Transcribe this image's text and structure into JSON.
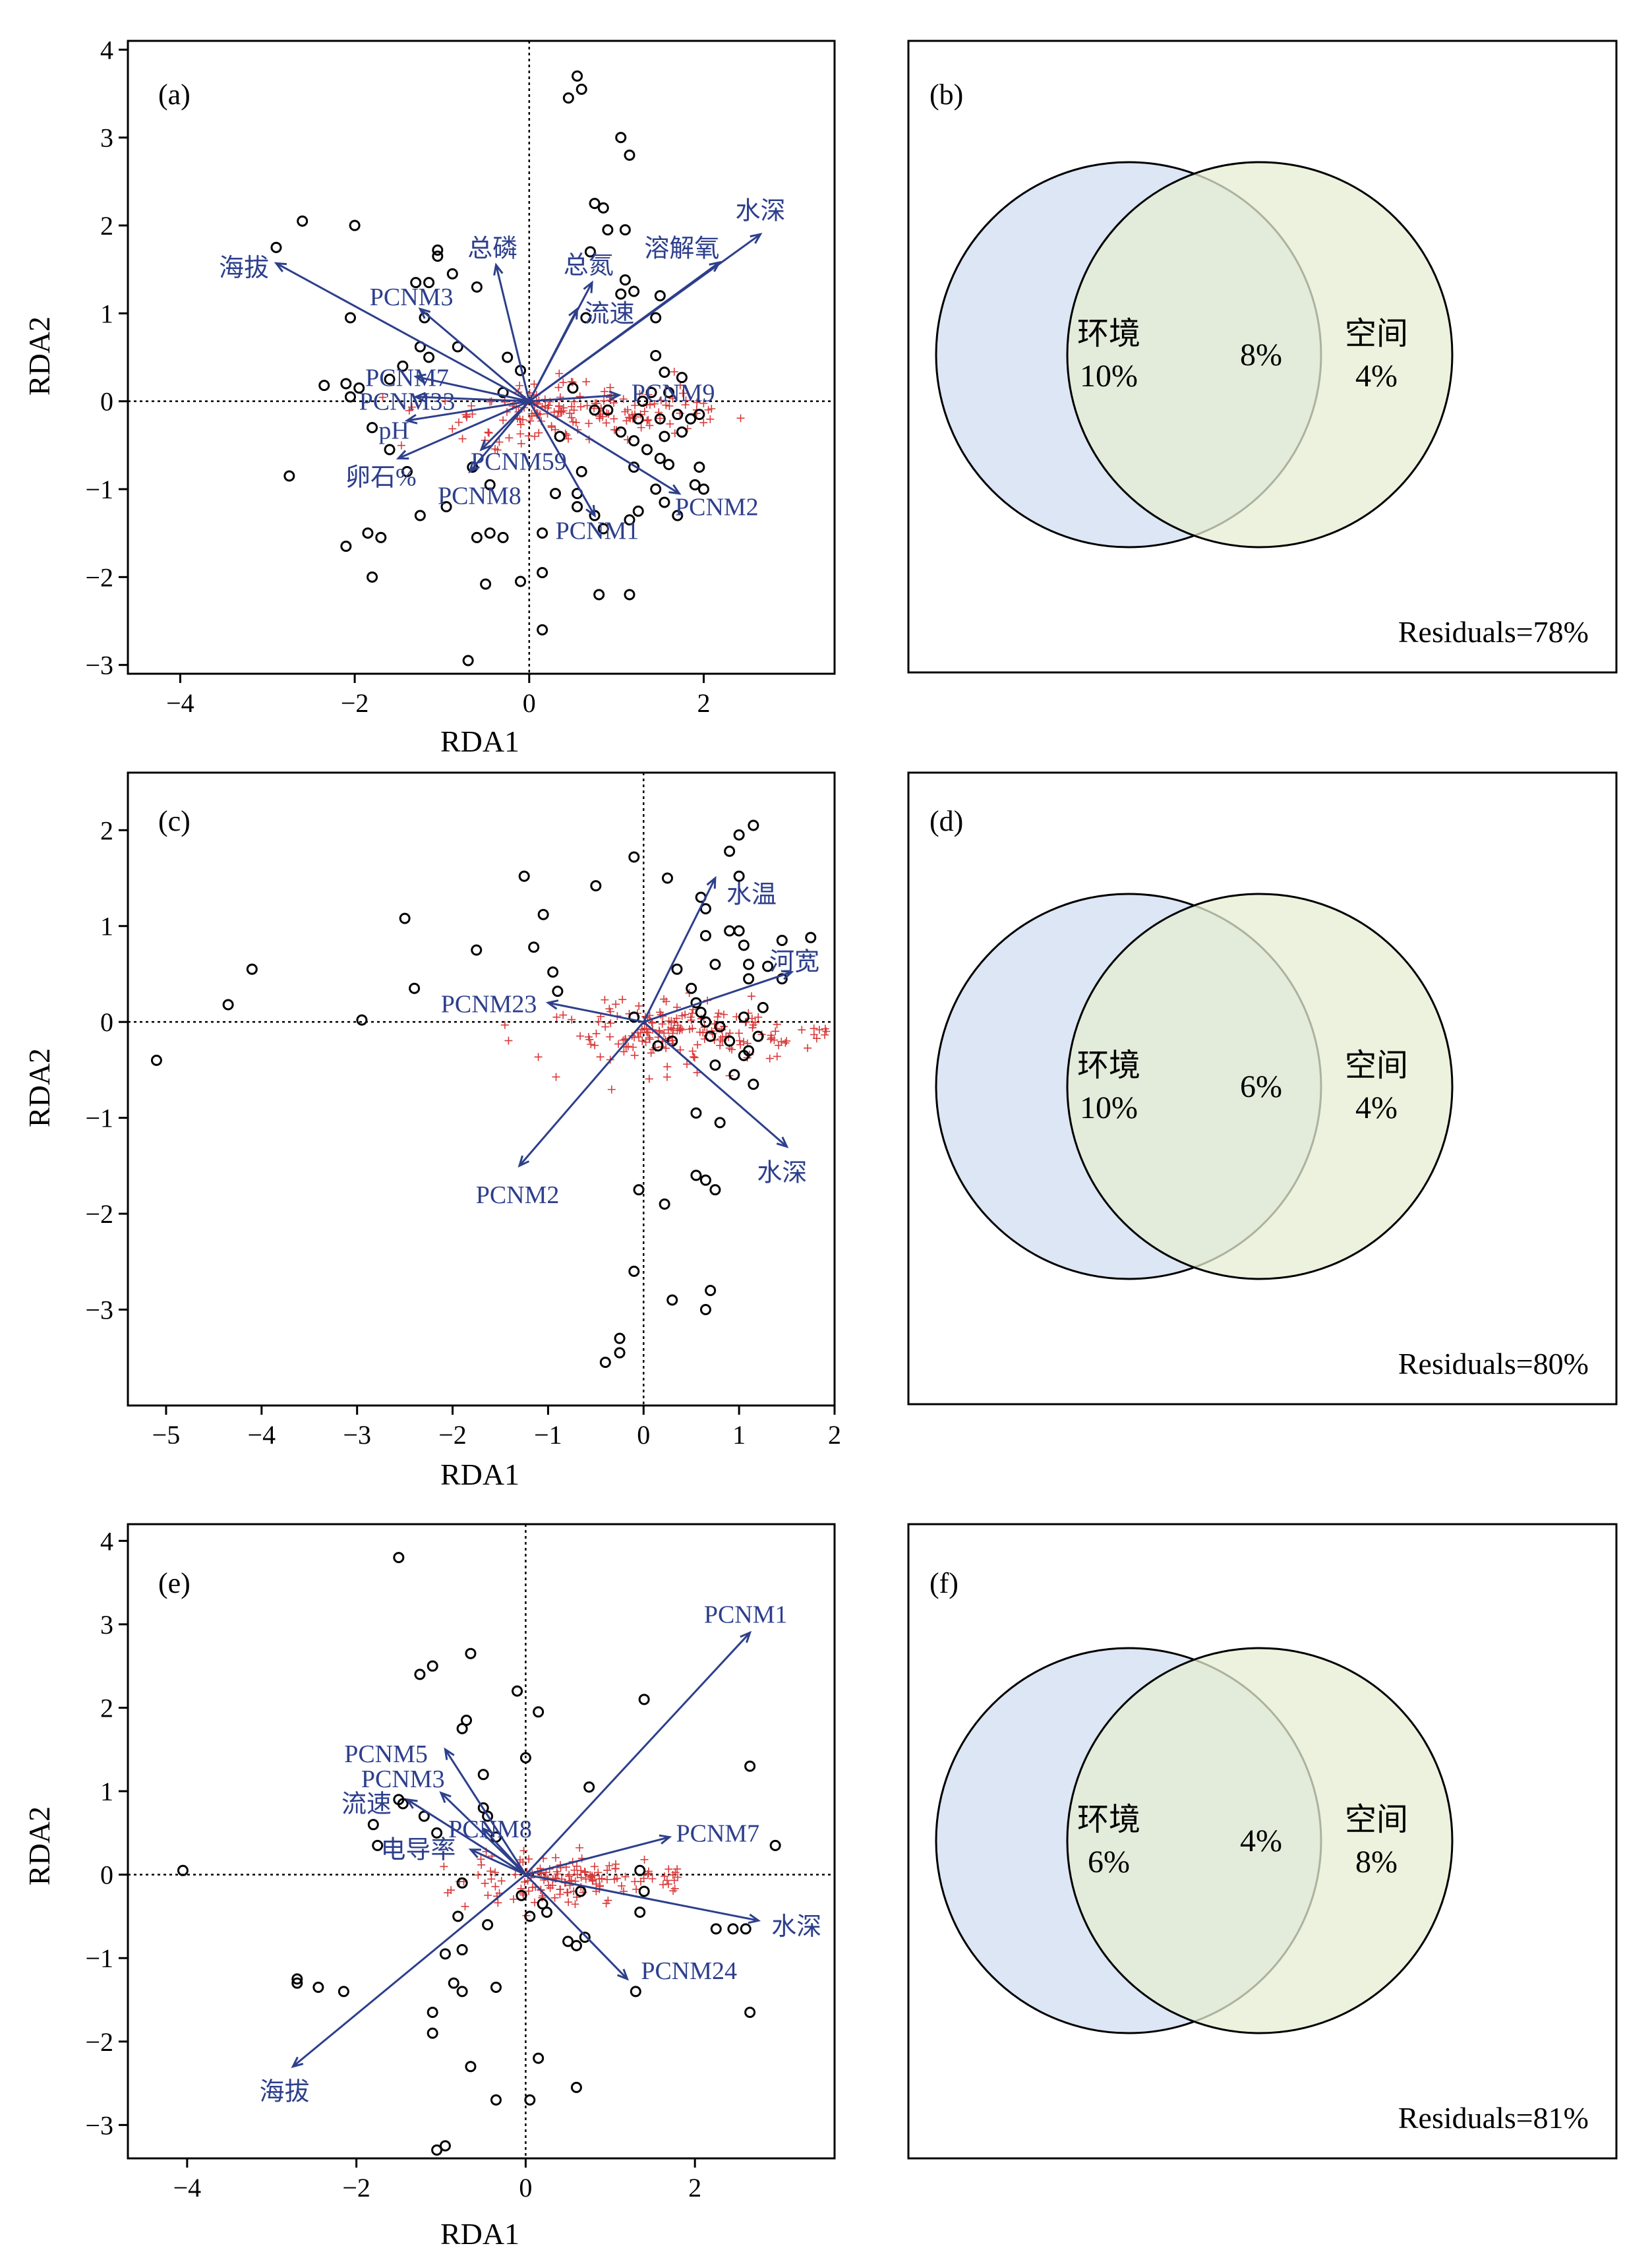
{
  "colors": {
    "arrow": "#2d3f8c",
    "site_point": "#000000",
    "species_point": "#d93a3a",
    "env_circle": "#d6e2f3",
    "space_circle": "#e6eed2",
    "overlap": "#c6dcd0"
  },
  "chart_data": [
    {
      "type": "scatter",
      "panel": "(a)",
      "xlabel": "RDA1",
      "ylabel": "RDA2",
      "xlim": [
        -4.6,
        3.5
      ],
      "ylim": [
        -3.1,
        4.1
      ],
      "xticks": [
        -4,
        -2,
        0,
        2
      ],
      "yticks": [
        -3,
        -2,
        -1,
        0,
        1,
        2,
        3,
        4
      ],
      "arrows": [
        {
          "label": "海拔",
          "x": -2.9,
          "y": 1.57,
          "lx": -3.27,
          "ly": 1.52
        },
        {
          "label": "总磷",
          "x": -0.38,
          "y": 1.55,
          "lx": -0.42,
          "ly": 1.74
        },
        {
          "label": "总氮",
          "x": 0.72,
          "y": 1.35,
          "lx": 0.68,
          "ly": 1.55
        },
        {
          "label": "溶解氧",
          "x": 2.18,
          "y": 1.58,
          "lx": 1.75,
          "ly": 1.74
        },
        {
          "label": "水深",
          "x": 2.65,
          "y": 1.9,
          "lx": 2.65,
          "ly": 2.17
        },
        {
          "label": "流速",
          "x": 0.55,
          "y": 1.05,
          "lx": 0.92,
          "ly": 1.0
        },
        {
          "label": "PCNM3",
          "x": -1.25,
          "y": 1.05,
          "lx": -1.35,
          "ly": 1.19
        },
        {
          "label": "PCNM7",
          "x": -1.3,
          "y": 0.28,
          "lx": -1.4,
          "ly": 0.27
        },
        {
          "label": "PCNM33",
          "x": -1.3,
          "y": 0.05,
          "lx": -1.4,
          "ly": 0.0
        },
        {
          "label": "pH",
          "x": -1.4,
          "y": -0.22,
          "lx": -1.55,
          "ly": -0.33
        },
        {
          "label": "卵石%",
          "x": -1.5,
          "y": -0.65,
          "lx": -1.7,
          "ly": -0.86
        },
        {
          "label": "PCNM59",
          "x": -0.55,
          "y": -0.55,
          "lx": -0.12,
          "ly": -0.68
        },
        {
          "label": "PCNM8",
          "x": -0.68,
          "y": -0.8,
          "lx": -0.57,
          "ly": -1.07
        },
        {
          "label": "PCNM9",
          "x": 1.03,
          "y": 0.07,
          "lx": 1.65,
          "ly": 0.1
        },
        {
          "label": "PCNM1",
          "x": 0.75,
          "y": -1.3,
          "lx": 0.78,
          "ly": -1.47
        },
        {
          "label": "PCNM2",
          "x": 1.72,
          "y": -1.05,
          "lx": 2.15,
          "ly": -1.2
        }
      ],
      "sites": [
        [
          -2.9,
          1.75
        ],
        [
          -2.6,
          2.05
        ],
        [
          -2.0,
          2.0
        ],
        [
          -1.15,
          1.35
        ],
        [
          -1.05,
          1.65
        ],
        [
          -1.05,
          1.72
        ],
        [
          -0.88,
          1.45
        ],
        [
          -0.6,
          1.3
        ],
        [
          -1.3,
          1.35
        ],
        [
          -2.05,
          0.95
        ],
        [
          -1.2,
          0.95
        ],
        [
          -1.25,
          0.62
        ],
        [
          -1.15,
          0.5
        ],
        [
          -0.82,
          0.62
        ],
        [
          -1.45,
          0.4
        ],
        [
          -1.6,
          0.25
        ],
        [
          -1.95,
          0.15
        ],
        [
          -2.1,
          0.2
        ],
        [
          -2.35,
          0.18
        ],
        [
          -2.05,
          0.05
        ],
        [
          -0.25,
          0.5
        ],
        [
          -0.1,
          0.35
        ],
        [
          -0.3,
          0.1
        ],
        [
          -2.75,
          -0.85
        ],
        [
          -1.8,
          -0.3
        ],
        [
          -1.6,
          -0.55
        ],
        [
          -1.4,
          -0.8
        ],
        [
          -0.95,
          -1.2
        ],
        [
          -0.65,
          -0.75
        ],
        [
          -0.45,
          -0.95
        ],
        [
          -0.45,
          -1.5
        ],
        [
          -0.6,
          -1.55
        ],
        [
          -0.3,
          -1.55
        ],
        [
          -1.25,
          -1.3
        ],
        [
          -1.7,
          -1.55
        ],
        [
          -1.85,
          -1.5
        ],
        [
          -2.1,
          -1.65
        ],
        [
          -1.8,
          -2.0
        ],
        [
          -0.7,
          -2.95
        ],
        [
          -0.5,
          -2.08
        ],
        [
          -0.1,
          -2.05
        ],
        [
          0.15,
          -1.95
        ],
        [
          0.15,
          -2.6
        ],
        [
          0.35,
          -0.4
        ],
        [
          0.6,
          -0.8
        ],
        [
          0.55,
          -1.05
        ],
        [
          0.75,
          -1.3
        ],
        [
          0.85,
          -1.45
        ],
        [
          0.55,
          -1.2
        ],
        [
          0.15,
          -1.5
        ],
        [
          0.3,
          -1.05
        ],
        [
          0.8,
          -2.2
        ],
        [
          1.15,
          -2.2
        ],
        [
          0.45,
          3.45
        ],
        [
          0.55,
          3.7
        ],
        [
          0.6,
          3.55
        ],
        [
          1.05,
          3.0
        ],
        [
          1.15,
          2.8
        ],
        [
          0.75,
          2.25
        ],
        [
          0.85,
          2.2
        ],
        [
          0.9,
          1.95
        ],
        [
          1.1,
          1.95
        ],
        [
          0.7,
          1.7
        ],
        [
          1.1,
          1.38
        ],
        [
          1.05,
          1.22
        ],
        [
          1.2,
          1.25
        ],
        [
          1.5,
          1.2
        ],
        [
          1.45,
          0.95
        ],
        [
          0.65,
          0.95
        ],
        [
          0.5,
          0.15
        ],
        [
          0.75,
          -0.1
        ],
        [
          0.9,
          -0.1
        ],
        [
          1.05,
          -0.35
        ],
        [
          1.45,
          0.52
        ],
        [
          1.55,
          0.33
        ],
        [
          1.75,
          0.27
        ],
        [
          1.6,
          0.1
        ],
        [
          1.4,
          0.1
        ],
        [
          1.3,
          0.0
        ],
        [
          1.25,
          -0.2
        ],
        [
          1.5,
          -0.2
        ],
        [
          1.7,
          -0.15
        ],
        [
          1.85,
          -0.2
        ],
        [
          1.95,
          -0.15
        ],
        [
          1.55,
          -0.4
        ],
        [
          1.75,
          -0.35
        ],
        [
          1.6,
          -0.72
        ],
        [
          1.2,
          -0.75
        ],
        [
          1.2,
          -0.45
        ],
        [
          1.35,
          -0.55
        ],
        [
          1.5,
          -0.65
        ],
        [
          1.45,
          -1.0
        ],
        [
          1.95,
          -0.75
        ],
        [
          1.9,
          -0.95
        ],
        [
          2.0,
          -1.0
        ],
        [
          1.7,
          -1.3
        ],
        [
          1.55,
          -1.15
        ],
        [
          1.25,
          -1.25
        ],
        [
          1.15,
          -1.35
        ]
      ],
      "species_cloud": {
        "x_mean": 0.3,
        "x_spread": 1.3,
        "y_mean": -0.12,
        "y_spread": 0.35,
        "count": 170,
        "tail_x_max": 2.1
      }
    },
    {
      "type": "venn",
      "panel": "(b)",
      "left": {
        "label": "环境",
        "value": "10%"
      },
      "right": {
        "label": "空间",
        "value": "4%"
      },
      "overlap": "8%",
      "residuals": "Residuals=78%"
    },
    {
      "type": "scatter",
      "panel": "(c)",
      "xlabel": "RDA1",
      "ylabel": "RDA2",
      "xlim": [
        -5.4,
        2.0
      ],
      "ylim": [
        -4.0,
        2.6
      ],
      "xticks": [
        -5,
        -4,
        -3,
        -2,
        -1,
        0,
        1,
        2
      ],
      "yticks": [
        -3,
        -2,
        -1,
        0,
        1,
        2
      ],
      "arrows": [
        {
          "label": "水温",
          "x": 0.75,
          "y": 1.5,
          "lx": 1.13,
          "ly": 1.33
        },
        {
          "label": "河宽",
          "x": 1.55,
          "y": 0.52,
          "lx": 1.58,
          "ly": 0.63
        },
        {
          "label": "PCNM23",
          "x": -1.0,
          "y": 0.2,
          "lx": -1.62,
          "ly": 0.19
        },
        {
          "label": "PCNM2",
          "x": -1.3,
          "y": -1.5,
          "lx": -1.32,
          "ly": -1.8
        },
        {
          "label": "水深",
          "x": 1.5,
          "y": -1.3,
          "lx": 1.45,
          "ly": -1.57
        }
      ],
      "sites": [
        [
          -5.1,
          -0.4
        ],
        [
          -4.35,
          0.18
        ],
        [
          -4.1,
          0.55
        ],
        [
          -2.95,
          0.02
        ],
        [
          -2.5,
          1.08
        ],
        [
          -2.4,
          0.35
        ],
        [
          -1.75,
          0.75
        ],
        [
          -1.25,
          1.52
        ],
        [
          -1.15,
          0.78
        ],
        [
          -1.05,
          1.12
        ],
        [
          -0.95,
          0.52
        ],
        [
          -0.9,
          0.32
        ],
        [
          -0.5,
          1.42
        ],
        [
          -0.1,
          1.72
        ],
        [
          0.25,
          1.5
        ],
        [
          0.6,
          1.3
        ],
        [
          0.65,
          1.18
        ],
        [
          0.65,
          0.9
        ],
        [
          0.75,
          0.6
        ],
        [
          0.9,
          0.95
        ],
        [
          1.0,
          0.95
        ],
        [
          1.05,
          0.8
        ],
        [
          1.1,
          0.6
        ],
        [
          1.1,
          0.45
        ],
        [
          1.3,
          0.58
        ],
        [
          1.45,
          0.45
        ],
        [
          1.45,
          0.85
        ],
        [
          1.75,
          0.88
        ],
        [
          1.15,
          2.05
        ],
        [
          1.0,
          1.95
        ],
        [
          0.9,
          1.78
        ],
        [
          1.0,
          1.52
        ],
        [
          0.35,
          0.55
        ],
        [
          0.5,
          0.35
        ],
        [
          0.55,
          0.2
        ],
        [
          0.6,
          0.1
        ],
        [
          0.65,
          0.0
        ],
        [
          0.7,
          -0.15
        ],
        [
          0.8,
          -0.05
        ],
        [
          0.9,
          -0.2
        ],
        [
          0.75,
          -0.45
        ],
        [
          0.95,
          -0.55
        ],
        [
          1.05,
          -0.35
        ],
        [
          1.05,
          0.05
        ],
        [
          1.2,
          -0.15
        ],
        [
          1.15,
          -0.65
        ],
        [
          1.25,
          0.15
        ],
        [
          1.1,
          -0.3
        ],
        [
          0.3,
          -0.2
        ],
        [
          0.15,
          -0.25
        ],
        [
          -0.1,
          0.05
        ],
        [
          0.55,
          -0.95
        ],
        [
          0.8,
          -1.05
        ],
        [
          -0.05,
          -1.75
        ],
        [
          0.22,
          -1.9
        ],
        [
          0.65,
          -1.65
        ],
        [
          0.75,
          -1.75
        ],
        [
          0.55,
          -1.6
        ],
        [
          -0.1,
          -2.6
        ],
        [
          0.3,
          -2.9
        ],
        [
          0.7,
          -2.8
        ],
        [
          0.65,
          -3.0
        ],
        [
          -0.25,
          -3.3
        ],
        [
          -0.25,
          -3.45
        ],
        [
          -0.4,
          -3.55
        ]
      ],
      "species_cloud": {
        "x_mean": 0.1,
        "x_spread": 0.9,
        "y_mean": -0.1,
        "y_spread": 0.35,
        "count": 180,
        "tail_x_max": 1.95
      }
    },
    {
      "type": "venn",
      "panel": "(d)",
      "left": {
        "label": "环境",
        "value": "10%"
      },
      "right": {
        "label": "空间",
        "value": "4%"
      },
      "overlap": "6%",
      "residuals": "Residuals=80%"
    },
    {
      "type": "scatter",
      "panel": "(e)",
      "xlabel": "RDA1",
      "ylabel": "RDA2",
      "xlim": [
        -4.7,
        3.65
      ],
      "ylim": [
        -3.4,
        4.2
      ],
      "xticks": [
        -4,
        -2,
        0,
        2
      ],
      "yticks": [
        -3,
        -2,
        -1,
        0,
        1,
        2,
        3,
        4
      ],
      "arrows": [
        {
          "label": "PCNM1",
          "x": 2.65,
          "y": 2.9,
          "lx": 2.6,
          "ly": 3.12
        },
        {
          "label": "PCNM5",
          "x": -0.95,
          "y": 1.5,
          "lx": -1.65,
          "ly": 1.45
        },
        {
          "label": "PCNM3",
          "x": -1.0,
          "y": 0.98,
          "lx": -1.45,
          "ly": 1.15
        },
        {
          "label": "流速",
          "x": -1.4,
          "y": 0.9,
          "lx": -1.88,
          "ly": 0.85
        },
        {
          "label": "PCNM8",
          "x": -0.5,
          "y": 0.55,
          "lx": -0.42,
          "ly": 0.55
        },
        {
          "label": "电导率",
          "x": -0.65,
          "y": 0.3,
          "lx": -1.27,
          "ly": 0.3
        },
        {
          "label": "PCNM7",
          "x": 1.7,
          "y": 0.45,
          "lx": 2.27,
          "ly": 0.5
        },
        {
          "label": "水深",
          "x": 2.75,
          "y": -0.55,
          "lx": 3.2,
          "ly": -0.62
        },
        {
          "label": "PCNM24",
          "x": 1.2,
          "y": -1.25,
          "lx": 1.93,
          "ly": -1.15
        },
        {
          "label": "海拔",
          "x": -2.75,
          "y": -2.3,
          "lx": -2.85,
          "ly": -2.6
        }
      ],
      "sites": [
        [
          -4.05,
          0.05
        ],
        [
          -1.5,
          3.8
        ],
        [
          -1.25,
          2.4
        ],
        [
          -1.1,
          2.5
        ],
        [
          -0.65,
          2.65
        ],
        [
          -0.7,
          1.85
        ],
        [
          -0.75,
          1.75
        ],
        [
          -0.5,
          1.2
        ],
        [
          -0.5,
          0.8
        ],
        [
          -0.45,
          0.7
        ],
        [
          -0.35,
          0.45
        ],
        [
          -1.5,
          0.9
        ],
        [
          -1.45,
          0.85
        ],
        [
          -1.75,
          0.35
        ],
        [
          -1.8,
          0.6
        ],
        [
          -1.2,
          0.7
        ],
        [
          -1.05,
          0.5
        ],
        [
          -0.75,
          -0.1
        ],
        [
          -0.8,
          -0.5
        ],
        [
          -0.45,
          -0.6
        ],
        [
          -0.75,
          -0.9
        ],
        [
          -0.95,
          -0.95
        ],
        [
          -0.85,
          -1.3
        ],
        [
          -0.75,
          -1.4
        ],
        [
          -0.35,
          -1.35
        ],
        [
          -1.1,
          -1.65
        ],
        [
          -1.1,
          -1.9
        ],
        [
          -2.7,
          -1.25
        ],
        [
          -2.45,
          -1.35
        ],
        [
          -2.15,
          -1.4
        ],
        [
          -2.7,
          -1.3
        ],
        [
          -0.65,
          -2.3
        ],
        [
          -0.35,
          -2.7
        ],
        [
          0.05,
          -2.7
        ],
        [
          0.15,
          -2.2
        ],
        [
          -0.95,
          -3.25
        ],
        [
          -1.05,
          -3.3
        ],
        [
          0.6,
          -2.55
        ],
        [
          -0.1,
          2.2
        ],
        [
          0.15,
          1.95
        ],
        [
          0.0,
          1.4
        ],
        [
          1.4,
          2.1
        ],
        [
          2.65,
          1.3
        ],
        [
          0.75,
          1.05
        ],
        [
          2.95,
          0.35
        ],
        [
          1.35,
          0.05
        ],
        [
          0.65,
          -0.2
        ],
        [
          1.4,
          -0.2
        ],
        [
          1.35,
          -0.45
        ],
        [
          2.25,
          -0.65
        ],
        [
          2.45,
          -0.65
        ],
        [
          2.6,
          -0.65
        ],
        [
          0.6,
          -0.85
        ],
        [
          0.25,
          -0.45
        ],
        [
          0.05,
          -0.5
        ],
        [
          1.3,
          -1.4
        ],
        [
          2.65,
          -1.65
        ],
        [
          0.7,
          -0.75
        ],
        [
          0.5,
          -0.8
        ],
        [
          0.2,
          -0.35
        ],
        [
          -0.05,
          -0.25
        ]
      ],
      "species_cloud": {
        "x_mean": 0.2,
        "x_spread": 0.9,
        "y_mean": -0.05,
        "y_spread": 0.32,
        "count": 150,
        "tail_x_max": 1.8
      }
    },
    {
      "type": "venn",
      "panel": "(f)",
      "left": {
        "label": "环境",
        "value": "6%"
      },
      "right": {
        "label": "空间",
        "value": "8%"
      },
      "overlap": "4%",
      "residuals": "Residuals=81%"
    }
  ]
}
